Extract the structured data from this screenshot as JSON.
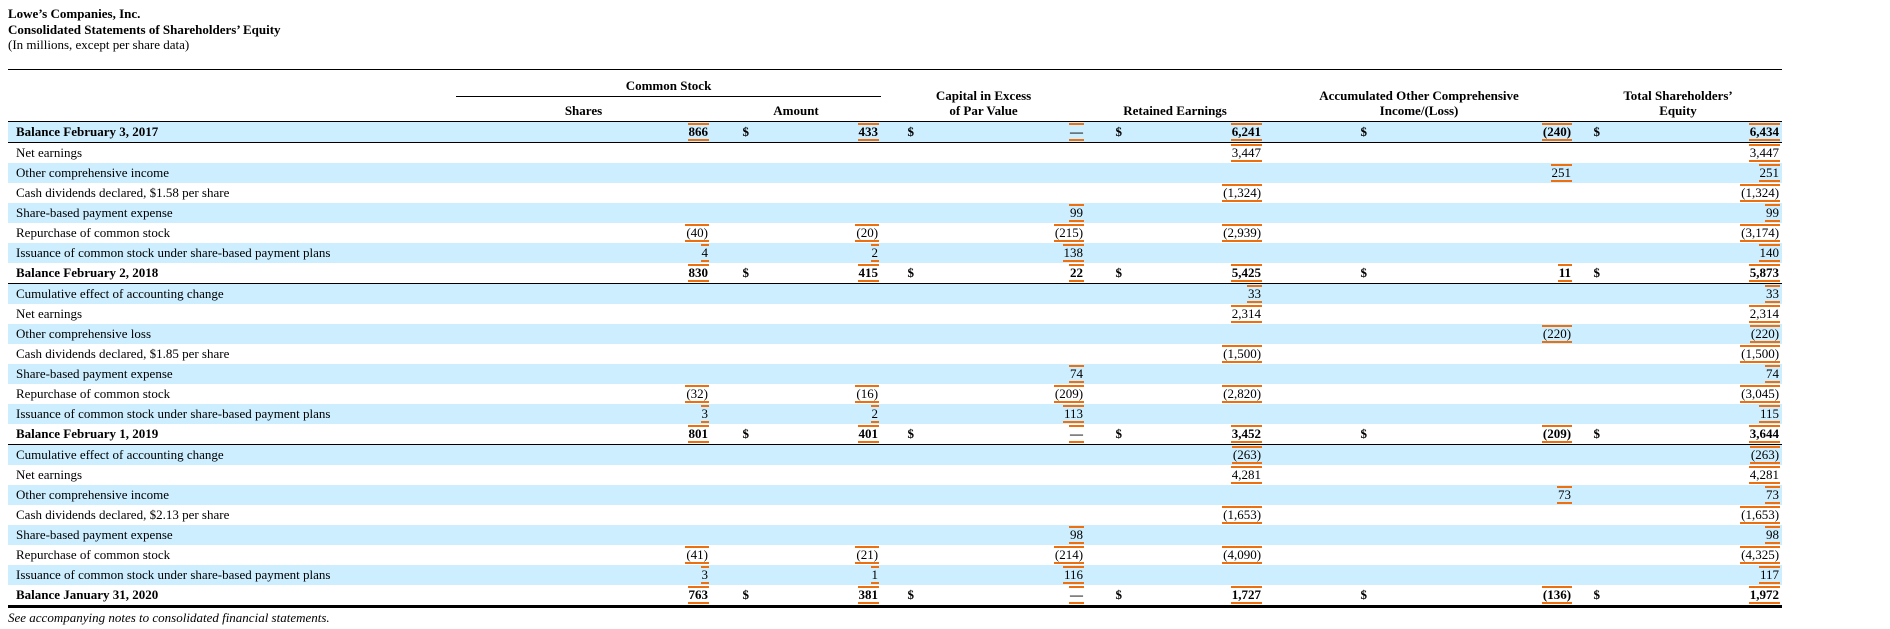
{
  "title_block": {
    "company": "Lowe’s Companies, Inc.",
    "statement": "Consolidated Statements of Shareholders’ Equity",
    "units": "(In millions, except per share data)"
  },
  "table": {
    "headers": {
      "common_stock_group": "Common Stock",
      "shares": "Shares",
      "amount": "Amount",
      "capital_line1": "Capital in Excess",
      "capital_line2": "of Par Value",
      "retained": "Retained Earnings",
      "aoci_line1": "Accumulated Other Comprehensive",
      "aoci_line2": "Income/(Loss)",
      "total_line1": "Total Shareholders’",
      "total_line2": "Equity",
      "dollar_sign": "$"
    },
    "rows": [
      {
        "label": "Balance February 3, 2017",
        "style": "balance",
        "shares": "866",
        "amount": "433",
        "capital": "—",
        "retained": "6,241",
        "aoci": "(240)",
        "total": "6,434"
      },
      {
        "label": "Net earnings",
        "style": "item",
        "retained": "3,447",
        "total": "3,447"
      },
      {
        "label": "Other comprehensive income",
        "style": "item",
        "aoci": "251",
        "total": "251"
      },
      {
        "label": "Cash dividends declared, $1.58 per share",
        "style": "item",
        "retained": "(1,324)",
        "total": "(1,324)"
      },
      {
        "label": "Share-based payment expense",
        "style": "item",
        "capital": "99",
        "total": "99"
      },
      {
        "label": "Repurchase of common stock",
        "style": "item",
        "shares": "(40)",
        "amount": "(20)",
        "capital": "(215)",
        "retained": "(2,939)",
        "total": "(3,174)"
      },
      {
        "label": "Issuance of common stock under share-based payment plans",
        "style": "item",
        "shares": "4",
        "amount": "2",
        "capital": "138",
        "total": "140"
      },
      {
        "label": "Balance February 2, 2018",
        "style": "balance",
        "shares": "830",
        "amount": "415",
        "capital": "22",
        "retained": "5,425",
        "aoci": "11",
        "total": "5,873"
      },
      {
        "label": "Cumulative effect of accounting change",
        "style": "item",
        "retained": "33",
        "total": "33"
      },
      {
        "label": "Net earnings",
        "style": "item",
        "retained": "2,314",
        "total": "2,314"
      },
      {
        "label": "Other comprehensive loss",
        "style": "item",
        "aoci": "(220)",
        "total": "(220)"
      },
      {
        "label": "Cash dividends declared, $1.85 per share",
        "style": "item",
        "retained": "(1,500)",
        "total": "(1,500)"
      },
      {
        "label": "Share-based payment expense",
        "style": "item",
        "capital": "74",
        "total": "74"
      },
      {
        "label": "Repurchase of common stock",
        "style": "item",
        "shares": "(32)",
        "amount": "(16)",
        "capital": "(209)",
        "retained": "(2,820)",
        "total": "(3,045)"
      },
      {
        "label": "Issuance of common stock under share-based payment plans",
        "style": "item",
        "shares": "3",
        "amount": "2",
        "capital": "113",
        "total": "115"
      },
      {
        "label": "Balance February 1, 2019",
        "style": "balance",
        "shares": "801",
        "amount": "401",
        "capital": "—",
        "retained": "3,452",
        "aoci": "(209)",
        "total": "3,644"
      },
      {
        "label": "Cumulative effect of accounting change",
        "style": "item",
        "retained": "(263)",
        "total": "(263)"
      },
      {
        "label": "Net earnings",
        "style": "item",
        "retained": "4,281",
        "total": "4,281"
      },
      {
        "label": "Other comprehensive income",
        "style": "item",
        "aoci": "73",
        "total": "73"
      },
      {
        "label": "Cash dividends declared, $2.13 per share",
        "style": "item",
        "retained": "(1,653)",
        "total": "(1,653)"
      },
      {
        "label": "Share-based payment expense",
        "style": "item",
        "capital": "98",
        "total": "98"
      },
      {
        "label": "Repurchase of common stock",
        "style": "item",
        "shares": "(41)",
        "amount": "(21)",
        "capital": "(214)",
        "retained": "(4,090)",
        "total": "(4,325)"
      },
      {
        "label": "Issuance of common stock under share-based payment plans",
        "style": "item",
        "shares": "3",
        "amount": "1",
        "capital": "116",
        "total": "117"
      },
      {
        "label": "Balance January 31, 2020",
        "style": "balance",
        "final": true,
        "shares": "763",
        "amount": "381",
        "capital": "—",
        "retained": "1,727",
        "aoci": "(136)",
        "total": "1,972"
      }
    ]
  },
  "footer": {
    "note": "See accompanying notes to consolidated financial statements."
  }
}
